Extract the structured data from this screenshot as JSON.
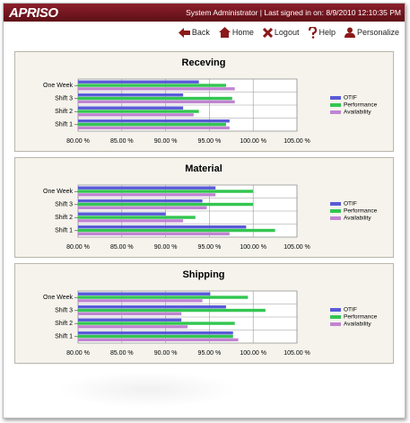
{
  "header": {
    "logo": "APRISO",
    "status": "System Administrator | Last signed in on: 8/9/2010 12:10:35 PM"
  },
  "nav": [
    "Back",
    "Home",
    "Logout",
    "Help",
    "Personalize"
  ],
  "chart_data": [
    {
      "type": "hbar",
      "title": "Receving",
      "categories": [
        "Shift 1",
        "Shift 2",
        "Shift 3",
        "One Week"
      ],
      "series": [
        {
          "name": "OTIF",
          "color": "#5a5ad8",
          "values": [
            97.3,
            92.0,
            92.0,
            93.8
          ]
        },
        {
          "name": "Performance",
          "color": "#33c651",
          "values": [
            96.9,
            93.8,
            97.6,
            96.9
          ]
        },
        {
          "name": "Availability",
          "color": "#c184d2",
          "values": [
            97.3,
            93.2,
            97.9,
            97.9
          ]
        }
      ],
      "xlim": [
        80,
        105
      ],
      "xticks": [
        {
          "value": 80,
          "label": "80.00 %"
        },
        {
          "value": 85,
          "label": "85.00 %"
        },
        {
          "value": 90,
          "label": "90.00 %"
        },
        {
          "value": 95,
          "label": "95.00 %"
        },
        {
          "value": 100,
          "label": "100.00 %"
        },
        {
          "value": 105,
          "label": "105.00 %"
        }
      ],
      "grid": true
    },
    {
      "type": "hbar",
      "title": "Material",
      "categories": [
        "Shift 1",
        "Shift 2",
        "Shift 3",
        "One Week"
      ],
      "series": [
        {
          "name": "OTIF",
          "color": "#5a5ad8",
          "values": [
            99.2,
            90.0,
            94.2,
            95.7
          ]
        },
        {
          "name": "Performance",
          "color": "#33c651",
          "values": [
            102.5,
            93.4,
            100.0,
            100.0
          ]
        },
        {
          "name": "Availability",
          "color": "#c184d2",
          "values": [
            97.3,
            92.0,
            94.7,
            95.7
          ]
        }
      ],
      "xlim": [
        80,
        105
      ],
      "xticks": [
        {
          "value": 80,
          "label": "80.00 %"
        },
        {
          "value": 85,
          "label": "85.00 %"
        },
        {
          "value": 90,
          "label": "90.00 %"
        },
        {
          "value": 95,
          "label": "95.00 %"
        },
        {
          "value": 100,
          "label": "100.00 %"
        },
        {
          "value": 105,
          "label": "105.00 %"
        }
      ],
      "grid": true
    },
    {
      "type": "hbar",
      "title": "Shipping",
      "categories": [
        "Shift 1",
        "Shift 2",
        "Shift 3",
        "One Week"
      ],
      "series": [
        {
          "name": "OTIF",
          "color": "#5a5ad8",
          "values": [
            97.7,
            91.8,
            96.9,
            95.1
          ]
        },
        {
          "name": "Performance",
          "color": "#33c651",
          "values": [
            97.7,
            97.9,
            101.4,
            99.4
          ]
        },
        {
          "name": "Availability",
          "color": "#c184d2",
          "values": [
            98.3,
            92.5,
            91.8,
            94.2
          ]
        }
      ],
      "xlim": [
        80,
        105
      ],
      "xticks": [
        {
          "value": 80,
          "label": "80.00 %"
        },
        {
          "value": 85,
          "label": "85.00 %"
        },
        {
          "value": 90,
          "label": "90.00 %"
        },
        {
          "value": 95,
          "label": "95.00 %"
        },
        {
          "value": 100,
          "label": "100.00 %"
        },
        {
          "value": 105,
          "label": "105.00 %"
        }
      ],
      "grid": true
    }
  ]
}
